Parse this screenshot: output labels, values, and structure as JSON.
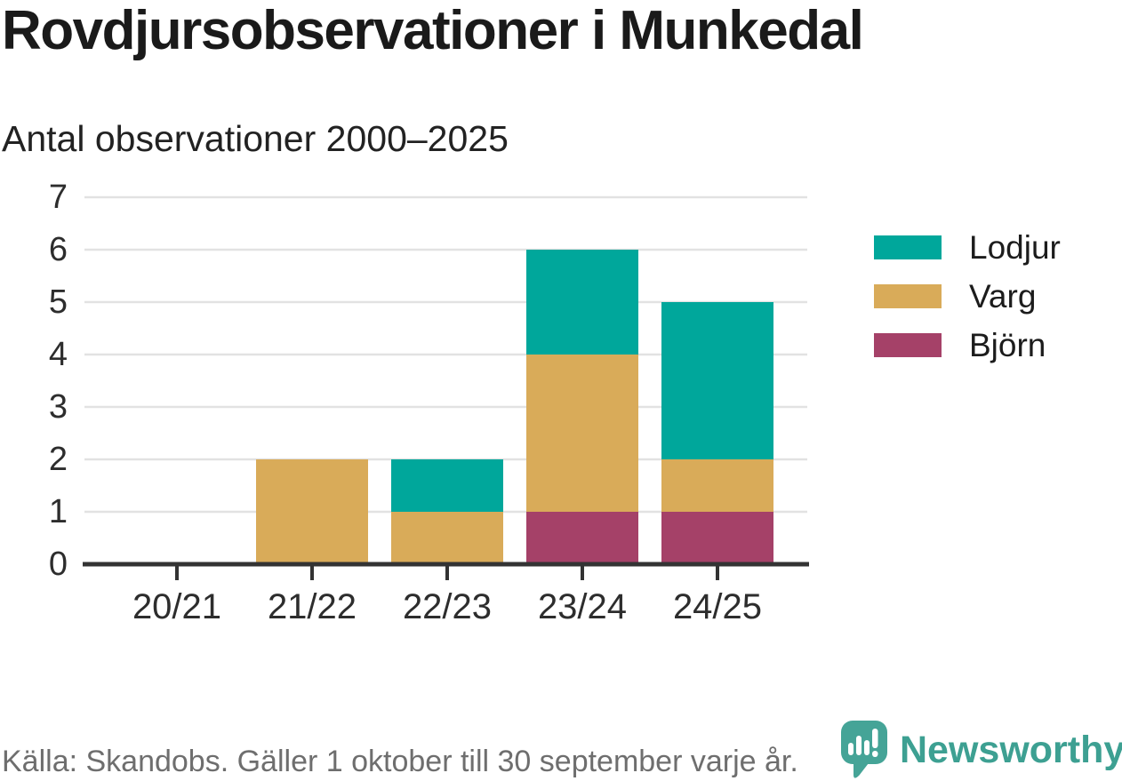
{
  "header": {
    "title": "Rovdjursobservationer i Munkedal",
    "subtitle": "Antal observationer 2000–2025"
  },
  "chart_data": {
    "type": "bar",
    "stacked": true,
    "title": "Rovdjursobservationer i Munkedal",
    "subtitle": "Antal observationer 2000–2025",
    "categories": [
      "20/21",
      "21/22",
      "22/23",
      "23/24",
      "24/25"
    ],
    "series": [
      {
        "name": "Lodjur",
        "color": "#00a79b",
        "values": [
          0,
          0,
          1,
          2,
          3
        ]
      },
      {
        "name": "Varg",
        "color": "#d9ab59",
        "values": [
          0,
          2,
          1,
          3,
          1
        ]
      },
      {
        "name": "Björn",
        "color": "#a54168",
        "values": [
          0,
          0,
          0,
          1,
          1
        ]
      }
    ],
    "stack_order_bottom_to_top": [
      "Björn",
      "Varg",
      "Lodjur"
    ],
    "totals": [
      0,
      2,
      2,
      6,
      5
    ],
    "xlabel": "",
    "ylabel": "",
    "ylim": [
      0,
      7
    ],
    "yticks": [
      0,
      1,
      2,
      3,
      4,
      5,
      6,
      7
    ],
    "grid": true,
    "legend_position": "right"
  },
  "footer": {
    "source": "Källa: Skandobs. Gäller 1 oktober till 30 september varje år.",
    "brand": "Newsworthy"
  },
  "colors": {
    "lodjur": "#00a79b",
    "varg": "#d9ab59",
    "bjorn": "#a54168",
    "axis": "#333333",
    "gridline": "#e2e2e2",
    "tick_label": "#2d2d2d",
    "text_dark": "#1a1a1a",
    "text_muted": "#6e6e6e",
    "brand_icon_teal": "#45a497",
    "brand_text_teal": "#3da092"
  }
}
